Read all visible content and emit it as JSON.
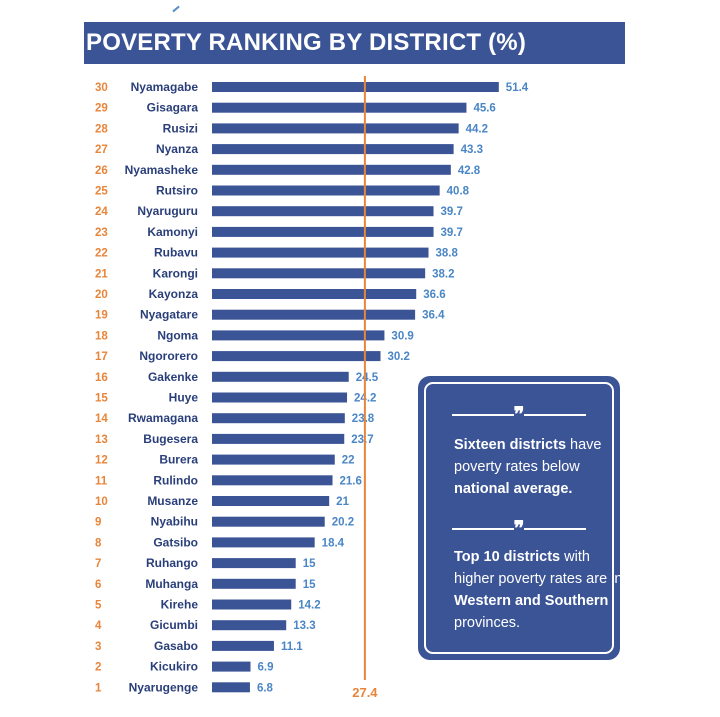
{
  "chart_data": {
    "type": "bar",
    "orientation": "horizontal",
    "title": "POVERTY RANKING BY DISTRICT (%)",
    "categories": [
      "Nyamagabe",
      "Gisagara",
      "Rusizi",
      "Nyanza",
      "Nyamasheke",
      "Rutsiro",
      "Nyaruguru",
      "Kamonyi",
      "Rubavu",
      "Karongi",
      "Kayonza",
      "Nyagatare",
      "Ngoma",
      "Ngororero",
      "Gakenke",
      "Huye",
      "Rwamagana",
      "Bugesera",
      "Burera",
      "Rulindo",
      "Musanze",
      "Nyabihu",
      "Gatsibo",
      "Ruhango",
      "Muhanga",
      "Kirehe",
      "Gicumbi",
      "Gasabo",
      "Kicukiro",
      "Nyarugenge"
    ],
    "ranks": [
      30,
      29,
      28,
      27,
      26,
      25,
      24,
      23,
      22,
      21,
      20,
      19,
      18,
      17,
      16,
      15,
      14,
      13,
      12,
      11,
      10,
      9,
      8,
      7,
      6,
      5,
      4,
      3,
      2,
      1
    ],
    "values": [
      51.4,
      45.6,
      44.2,
      43.3,
      42.8,
      40.8,
      39.7,
      39.7,
      38.8,
      38.2,
      36.6,
      36.4,
      30.9,
      30.2,
      24.5,
      24.2,
      23.8,
      23.7,
      22,
      21.6,
      21,
      20.2,
      18.4,
      15,
      15,
      14.2,
      13.3,
      11.1,
      6.9,
      6.8
    ],
    "value_labels": [
      "51.4",
      "45.6",
      "44.2",
      "43.3",
      "42.8",
      "40.8",
      "39.7",
      "39.7",
      "38.8",
      "38.2",
      "36.6",
      "36.4",
      "30.9",
      "30.2",
      "24.5",
      "24.2",
      "23.8",
      "23.7",
      "22",
      "21.6",
      "21",
      "20.2",
      "18.4",
      "15",
      "15",
      "14.2",
      "13.3",
      "11.1",
      "6.9",
      "6.8"
    ],
    "reference_line": {
      "value": 27.4,
      "label": "27.4"
    },
    "grid": false,
    "colors": {
      "bar": "#3b5496",
      "value_label": "#4a86c5",
      "rank": "#e8853a",
      "reference": "#e8853a",
      "category": "#2a3f7a"
    }
  },
  "callout": {
    "quote_glyph": "❞",
    "note1": {
      "bold1": "Sixteen districts",
      "text1": " have poverty rates below ",
      "bold2": "national average."
    },
    "note2": {
      "bold1": "Top 10 districts",
      "text1": " with higher poverty rates are in ",
      "bold2": "Western and Southern",
      "text2": " provinces."
    }
  }
}
